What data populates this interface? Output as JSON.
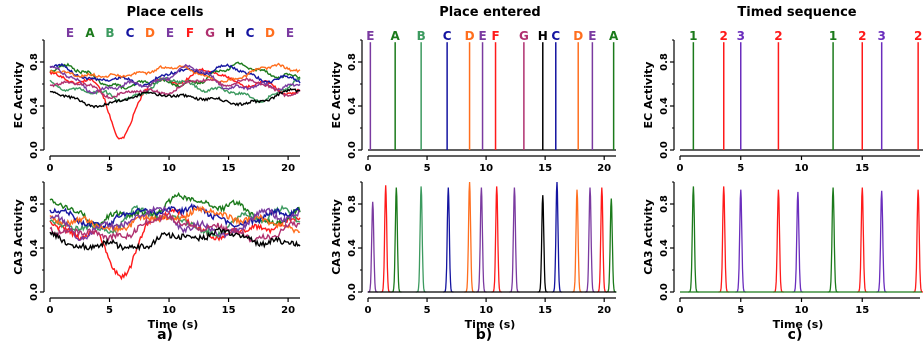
{
  "colors": {
    "A": "#1b7a1b",
    "B": "#3c9a5f",
    "C": "#1414a0",
    "D": "#ff6e1e",
    "E": "#7a3aa0",
    "F": "#ff1a1a",
    "G": "#b0306f",
    "H": "#000000",
    "1": "#1b7a1b",
    "2": "#ff1a1a",
    "3": "#6a2dbd"
  },
  "chart_data": [
    {
      "type": "line",
      "panel": "a)",
      "title": "Place cells",
      "top_labels": [
        "E",
        "A",
        "B",
        "C",
        "D",
        "E",
        "F",
        "G",
        "H",
        "C",
        "D",
        "E"
      ],
      "xlabel": "Time (s)",
      "xlim": [
        0,
        21
      ],
      "xticks": [
        0,
        5,
        10,
        15,
        20
      ],
      "subplots": [
        {
          "ylabel": "EC Activity",
          "ylim": [
            0,
            1
          ],
          "yticks": [
            0.0,
            0.4,
            0.8
          ],
          "tick_labels": [
            "0.0",
            "0.4",
            "0.8"
          ],
          "series": [
            {
              "color_key": "F",
              "base": 0.62,
              "amp": 0.12,
              "dip": {
                "t": 6.0,
                "depth": 0.42
              }
            },
            {
              "color_key": "A",
              "base": 0.66,
              "amp": 0.13
            },
            {
              "color_key": "B",
              "base": 0.55,
              "amp": 0.12
            },
            {
              "color_key": "C",
              "base": 0.68,
              "amp": 0.1
            },
            {
              "color_key": "D",
              "base": 0.7,
              "amp": 0.08
            },
            {
              "color_key": "E",
              "base": 0.63,
              "amp": 0.14
            },
            {
              "color_key": "G",
              "base": 0.57,
              "amp": 0.1
            },
            {
              "color_key": "H",
              "base": 0.47,
              "amp": 0.08
            }
          ]
        },
        {
          "ylabel": "CA3 Activity",
          "ylim": [
            0,
            1
          ],
          "yticks": [
            0.0,
            0.4,
            0.8
          ],
          "tick_labels": [
            "0.0",
            "0.4",
            "0.8"
          ],
          "series": [
            {
              "color_key": "F",
              "base": 0.6,
              "amp": 0.14,
              "dip": {
                "t": 6.0,
                "depth": 0.45
              }
            },
            {
              "color_key": "A",
              "base": 0.75,
              "amp": 0.14
            },
            {
              "color_key": "B",
              "base": 0.64,
              "amp": 0.14
            },
            {
              "color_key": "C",
              "base": 0.7,
              "amp": 0.11
            },
            {
              "color_key": "D",
              "base": 0.66,
              "amp": 0.1
            },
            {
              "color_key": "E",
              "base": 0.63,
              "amp": 0.15
            },
            {
              "color_key": "G",
              "base": 0.58,
              "amp": 0.12
            },
            {
              "color_key": "H",
              "base": 0.47,
              "amp": 0.1
            }
          ]
        }
      ]
    },
    {
      "type": "line",
      "panel": "b)",
      "title": "Place entered",
      "top_labels": [
        "E",
        "A",
        "B",
        "C",
        "D",
        "E",
        "F",
        "G",
        "H",
        "C",
        "D",
        "E",
        "A"
      ],
      "xlabel": "Time (s)",
      "xlim": [
        0,
        21
      ],
      "xticks": [
        0,
        5,
        10,
        15,
        20
      ],
      "spikes_ec": [
        {
          "t": 0.2,
          "k": "E"
        },
        {
          "t": 2.3,
          "k": "A"
        },
        {
          "t": 4.5,
          "k": "B"
        },
        {
          "t": 6.7,
          "k": "C"
        },
        {
          "t": 8.6,
          "k": "D"
        },
        {
          "t": 9.7,
          "k": "E"
        },
        {
          "t": 10.8,
          "k": "F"
        },
        {
          "t": 13.2,
          "k": "G"
        },
        {
          "t": 14.8,
          "k": "H"
        },
        {
          "t": 15.9,
          "k": "C"
        },
        {
          "t": 17.8,
          "k": "D"
        },
        {
          "t": 19.0,
          "k": "E"
        },
        {
          "t": 20.8,
          "k": "A"
        }
      ],
      "spikes_ca3": [
        {
          "t": 0.4,
          "k": "E",
          "h": 0.82
        },
        {
          "t": 1.5,
          "k": "F",
          "h": 0.97
        },
        {
          "t": 2.4,
          "k": "A",
          "h": 0.95
        },
        {
          "t": 4.5,
          "k": "B",
          "h": 0.96
        },
        {
          "t": 6.8,
          "k": "C",
          "h": 0.95
        },
        {
          "t": 8.6,
          "k": "D",
          "h": 1.0
        },
        {
          "t": 9.6,
          "k": "E",
          "h": 0.95
        },
        {
          "t": 10.9,
          "k": "F",
          "h": 0.96
        },
        {
          "t": 12.4,
          "k": "E",
          "h": 0.95
        },
        {
          "t": 14.8,
          "k": "H",
          "h": 0.88
        },
        {
          "t": 16.0,
          "k": "C",
          "h": 1.0
        },
        {
          "t": 17.7,
          "k": "D",
          "h": 0.93
        },
        {
          "t": 18.8,
          "k": "E",
          "h": 0.95
        },
        {
          "t": 19.8,
          "k": "F",
          "h": 0.95
        },
        {
          "t": 20.6,
          "k": "A",
          "h": 0.85
        }
      ],
      "subplots": [
        {
          "ylabel": "EC Activity",
          "ylim": [
            0,
            1
          ],
          "yticks": [
            0.0,
            0.4,
            0.8
          ],
          "tick_labels": [
            "0.0",
            "0.4",
            "0.8"
          ]
        },
        {
          "ylabel": "CA3 Activity",
          "ylim": [
            0,
            1
          ],
          "yticks": [
            0.0,
            0.4,
            0.8
          ],
          "tick_labels": [
            "0.0",
            "0.4",
            "0.8"
          ]
        }
      ]
    },
    {
      "type": "line",
      "panel": "c)",
      "title": "Timed sequence",
      "top_labels": [
        "1",
        "2",
        "3",
        "2",
        "1",
        "2",
        "3",
        "2"
      ],
      "xlabel": "Time (s)",
      "xlim": [
        0,
        20
      ],
      "xticks": [
        0,
        5,
        10,
        15,
        20
      ],
      "spikes_ec": [
        {
          "t": 1.1,
          "k": "1"
        },
        {
          "t": 3.6,
          "k": "2"
        },
        {
          "t": 5.0,
          "k": "3"
        },
        {
          "t": 8.1,
          "k": "2"
        },
        {
          "t": 12.6,
          "k": "1"
        },
        {
          "t": 15.0,
          "k": "2"
        },
        {
          "t": 16.6,
          "k": "3"
        },
        {
          "t": 19.6,
          "k": "2"
        }
      ],
      "spikes_ca3": [
        {
          "t": 1.1,
          "k": "1",
          "h": 0.96
        },
        {
          "t": 3.6,
          "k": "2",
          "h": 0.96
        },
        {
          "t": 5.0,
          "k": "3",
          "h": 0.93
        },
        {
          "t": 8.1,
          "k": "2",
          "h": 0.93
        },
        {
          "t": 9.7,
          "k": "3",
          "h": 0.91
        },
        {
          "t": 12.6,
          "k": "1",
          "h": 0.95
        },
        {
          "t": 15.0,
          "k": "2",
          "h": 0.95
        },
        {
          "t": 16.6,
          "k": "3",
          "h": 0.92
        },
        {
          "t": 19.6,
          "k": "2",
          "h": 0.93
        }
      ],
      "subplots": [
        {
          "ylabel": "EC Activity",
          "ylim": [
            0,
            1
          ],
          "yticks": [
            0.0,
            0.4,
            0.8
          ],
          "tick_labels": [
            "0.0",
            "0.4",
            "0.8"
          ]
        },
        {
          "ylabel": "CA3 Activity",
          "ylim": [
            0,
            1
          ],
          "yticks": [
            0.0,
            0.4,
            0.8
          ],
          "tick_labels": [
            "0.0",
            "0.4",
            "0.8"
          ]
        }
      ]
    }
  ]
}
